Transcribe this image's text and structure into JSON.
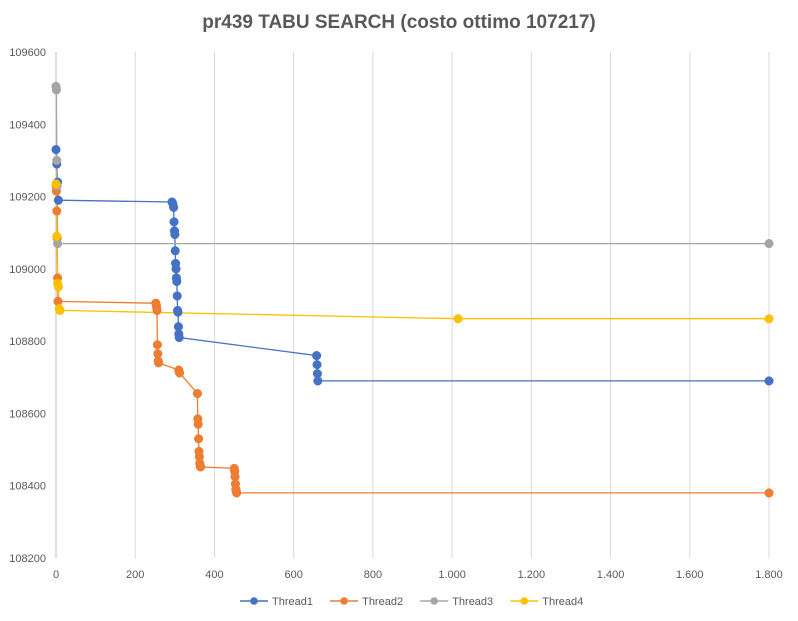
{
  "chart_data": {
    "type": "line",
    "title": "pr439 TABU SEARCH (costo ottimo 107217)",
    "xlabel": "",
    "ylabel": "",
    "xlim": [
      0,
      1800
    ],
    "ylim": [
      108200,
      109600
    ],
    "x_ticks": [
      0,
      200,
      400,
      600,
      800,
      1000,
      1200,
      1400,
      1600,
      1800
    ],
    "x_tick_labels": [
      "0",
      "200",
      "400",
      "600",
      "800",
      "1.000",
      "1.200",
      "1.400",
      "1.600",
      "1.800"
    ],
    "y_ticks": [
      108200,
      108400,
      108600,
      108800,
      109000,
      109200,
      109400,
      109600
    ],
    "y_tick_labels": [
      "108200",
      "108400",
      "108600",
      "108800",
      "109000",
      "109200",
      "109400",
      "109600"
    ],
    "grid": "vertical",
    "legend": "bottom",
    "series": [
      {
        "name": "Thread1",
        "color": "#4472C4",
        "x": [
          0,
          2,
          4,
          6,
          293,
          295,
          297,
          298,
          299,
          300,
          301,
          302,
          303,
          304,
          305,
          306,
          307,
          308,
          309,
          310,
          311,
          658,
          659,
          660,
          661,
          1800
        ],
        "y": [
          109330,
          109290,
          109240,
          109190,
          109185,
          109180,
          109170,
          109130,
          109105,
          109095,
          109050,
          109015,
          109000,
          108975,
          108965,
          108925,
          108885,
          108880,
          108840,
          108820,
          108810,
          108760,
          108735,
          108710,
          108690,
          108690
        ]
      },
      {
        "name": "Thread2",
        "color": "#ED7D31",
        "x": [
          0,
          1,
          2,
          3,
          4,
          5,
          252,
          253,
          254,
          255,
          256,
          257,
          258,
          259,
          310,
          312,
          357,
          358,
          359,
          360,
          361,
          362,
          363,
          364,
          365,
          450,
          451,
          452,
          453,
          454,
          455,
          456,
          1800
        ],
        "y": [
          109230,
          109215,
          109160,
          109085,
          108975,
          108910,
          108905,
          108900,
          108895,
          108885,
          108790,
          108765,
          108745,
          108740,
          108720,
          108712,
          108655,
          108585,
          108570,
          108530,
          108495,
          108480,
          108462,
          108455,
          108452,
          108448,
          108440,
          108425,
          108405,
          108390,
          108385,
          108380,
          108380
        ]
      },
      {
        "name": "Thread3",
        "color": "#A5A5A5",
        "x": [
          0,
          1,
          2,
          3,
          4,
          1800
        ],
        "y": [
          109505,
          109495,
          109300,
          109230,
          109070,
          109070
        ]
      },
      {
        "name": "Thread4",
        "color": "#FFC000",
        "x": [
          0,
          2,
          4,
          6,
          8,
          10,
          1015,
          1800
        ],
        "y": [
          109235,
          109090,
          108960,
          108950,
          108890,
          108885,
          108862,
          108862
        ]
      }
    ]
  }
}
